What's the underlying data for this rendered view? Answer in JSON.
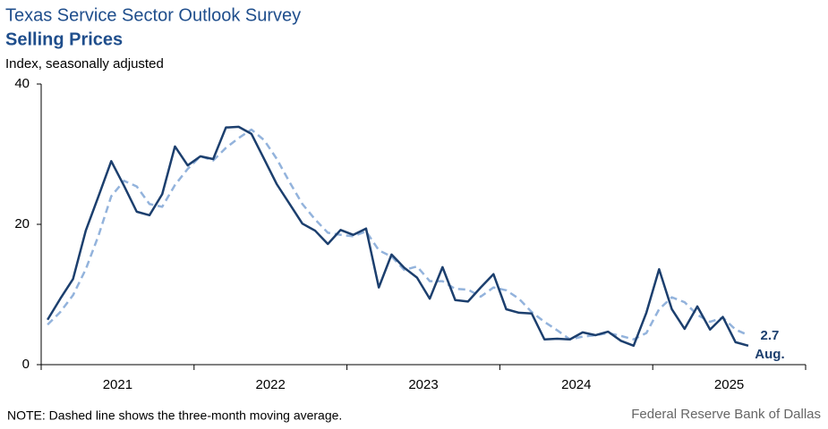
{
  "chart_data": {
    "type": "line",
    "title": "Texas Service Sector Outlook Survey",
    "subtitle": "Selling Prices",
    "y_axis_label": "Index, seasonally adjusted",
    "categories": [
      null,
      null,
      null,
      null,
      null,
      "2021",
      null,
      null,
      null,
      null,
      null,
      null,
      null,
      null,
      null,
      null,
      null,
      "2022",
      null,
      null,
      null,
      null,
      null,
      null,
      null,
      null,
      null,
      null,
      null,
      "2023",
      null,
      null,
      null,
      null,
      null,
      null,
      null,
      null,
      null,
      null,
      null,
      "2024",
      null,
      null,
      null,
      null,
      null,
      null,
      null,
      null,
      null,
      null,
      null,
      "2025",
      null,
      null
    ],
    "series": [
      {
        "name": "Selling Prices",
        "color": "#1c3f6e",
        "dashed": false,
        "values": [
          6.4,
          9.4,
          12.2,
          19.1,
          24.0,
          29.0,
          25.5,
          21.8,
          21.3,
          24.3,
          31.1,
          28.4,
          29.7,
          29.3,
          33.8,
          33.9,
          32.9,
          29.3,
          25.7,
          22.9,
          20.1,
          19.1,
          17.2,
          19.2,
          18.5,
          19.4,
          11.0,
          15.7,
          13.8,
          12.4,
          9.4,
          13.9,
          9.2,
          9.0,
          11.0,
          12.9,
          7.9,
          7.4,
          7.3,
          3.6,
          3.7,
          3.6,
          4.6,
          4.2,
          4.7,
          3.4,
          2.7,
          7.4,
          13.6,
          7.9,
          5.1,
          8.3,
          5.0,
          6.8,
          3.2,
          2.7
        ]
      },
      {
        "name": "Three-month moving average",
        "color": "#93b3dc",
        "dashed": true,
        "values": [
          5.7,
          7.5,
          9.9,
          13.6,
          18.4,
          24.0,
          26.2,
          25.4,
          22.9,
          22.5,
          25.6,
          27.9,
          29.7,
          29.1,
          30.9,
          32.3,
          33.5,
          32.0,
          29.3,
          26.0,
          22.9,
          20.7,
          18.8,
          18.5,
          18.3,
          19.0,
          16.3,
          15.4,
          13.5,
          14.0,
          11.9,
          11.9,
          10.8,
          10.7,
          9.7,
          11.0,
          10.6,
          9.4,
          7.5,
          6.1,
          4.9,
          3.6,
          4.0,
          4.2,
          4.5,
          4.1,
          3.6,
          4.5,
          7.9,
          9.6,
          8.9,
          7.1,
          6.1,
          6.7,
          5.0,
          4.2
        ]
      }
    ],
    "last_point_label": "Aug.",
    "ylim": [
      0,
      40
    ],
    "yticks": [
      0,
      20,
      40
    ],
    "grid": false,
    "note": "NOTE: Dashed line shows the three-month moving average.",
    "source": "Federal Reserve Bank of Dallas"
  }
}
